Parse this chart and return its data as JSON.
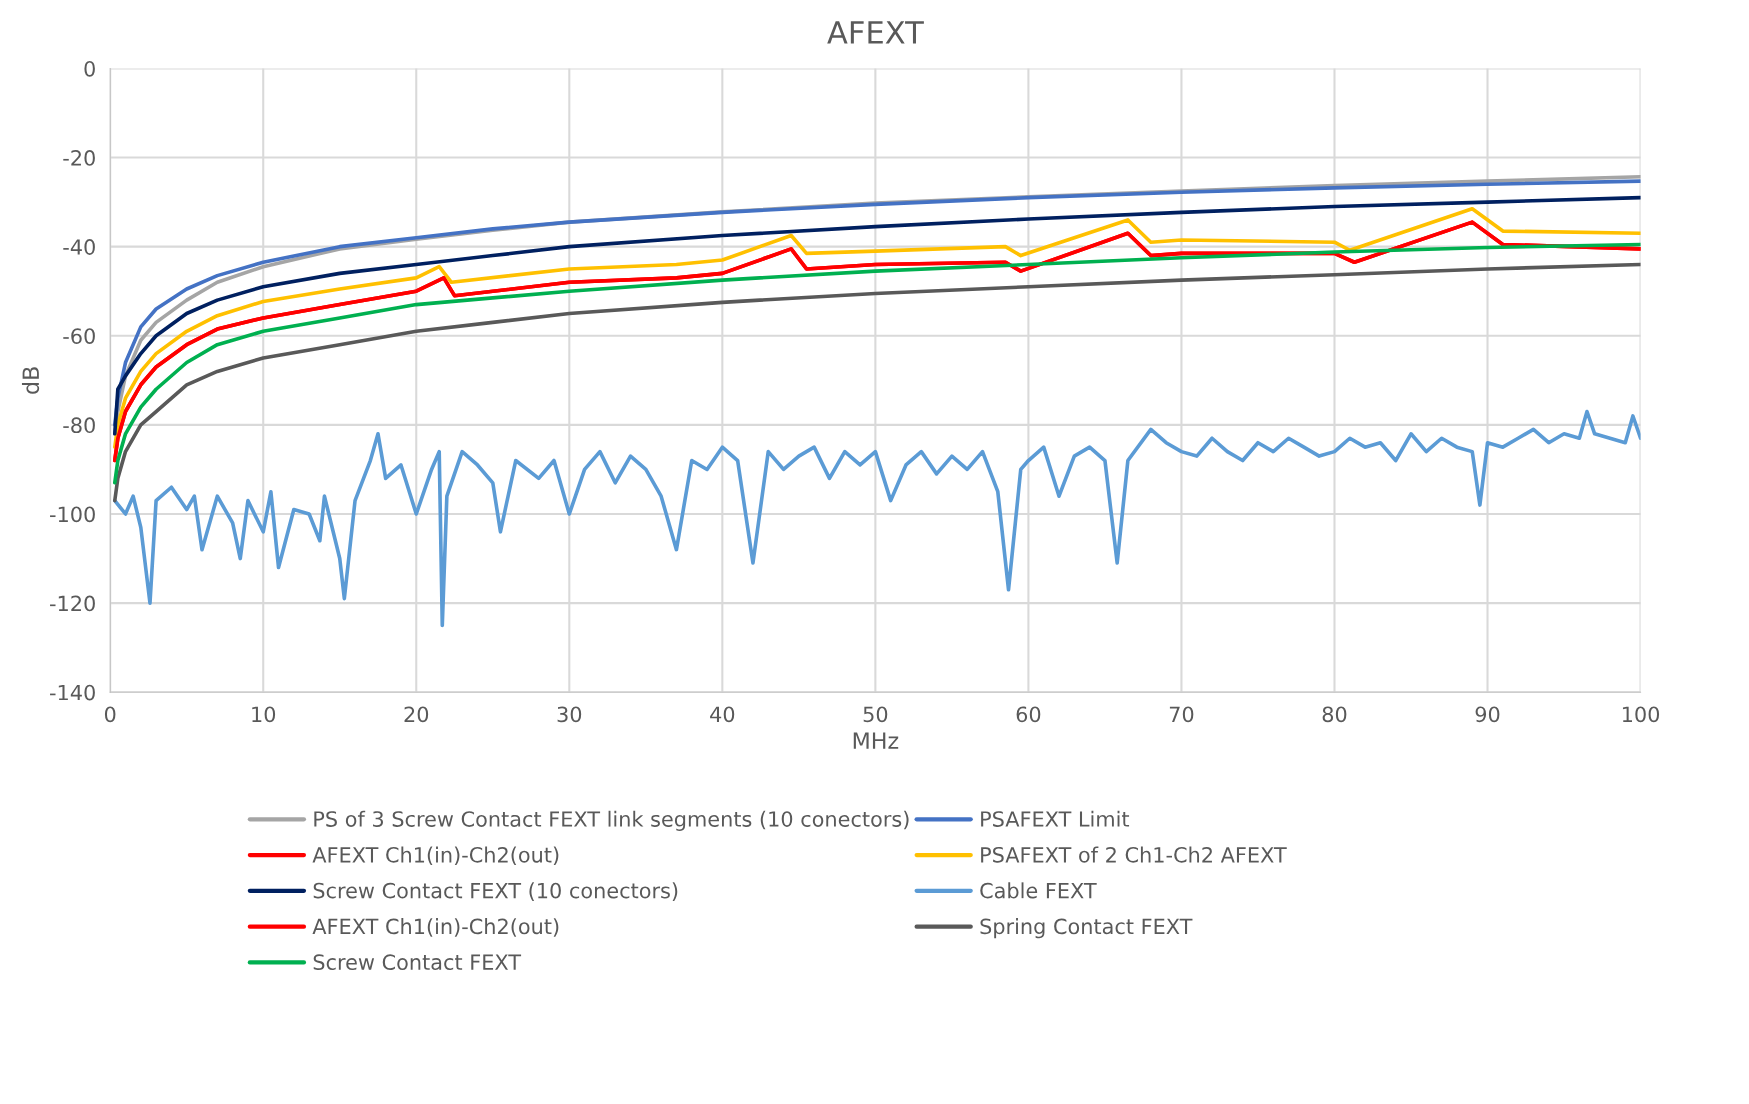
{
  "chart_data": {
    "type": "line",
    "title": "AFEXT",
    "xlabel": "MHz",
    "ylabel": "dB",
    "xlim": [
      0,
      100
    ],
    "xticks": [
      0,
      10,
      20,
      30,
      40,
      50,
      60,
      70,
      80,
      90,
      100
    ],
    "ylim": [
      -140,
      0
    ],
    "yticks": [
      -140,
      -120,
      -100,
      -80,
      -60,
      -40,
      -20,
      0
    ],
    "grid": true,
    "legend": "bottom",
    "marker": "none",
    "line_style": "solid",
    "series": [
      {
        "name": "PS of 3 Screw Contact FEXT link segments (10 conectors)",
        "color": "#a5a5a5",
        "x": [
          0.3,
          0.5,
          1,
          2,
          3,
          5,
          7,
          10,
          15,
          20,
          25,
          30,
          40,
          50,
          60,
          70,
          80,
          90,
          100
        ],
        "values": [
          -82,
          -77,
          -69,
          -61,
          -57,
          -52,
          -48,
          -44.5,
          -40.5,
          -38.3,
          -36.3,
          -34.5,
          -32.2,
          -30.2,
          -28.8,
          -27.5,
          -26.3,
          -25.3,
          -24.3
        ]
      },
      {
        "name": "PSAFEXT Limit",
        "color": "#4472c4",
        "x": [
          0.3,
          0.5,
          1,
          2,
          3,
          5,
          7,
          10,
          15,
          20,
          25,
          30,
          40,
          50,
          60,
          70,
          80,
          90,
          100
        ],
        "values": [
          -80,
          -74,
          -66,
          -58,
          -54,
          -49.5,
          -46.5,
          -43.5,
          -40,
          -38,
          -36,
          -34.5,
          -32.3,
          -30.5,
          -29,
          -27.8,
          -26.8,
          -26,
          -25.3
        ]
      },
      {
        "name": "AFEXT Ch1(in)-Ch2(out)",
        "color": "#ff0000",
        "x": [
          0.3,
          0.5,
          1,
          2,
          3,
          5,
          7,
          10,
          15,
          20,
          21.8,
          22.5,
          30,
          37,
          40,
          44.5,
          45.5,
          50,
          58.5,
          59.5,
          66.5,
          68,
          70,
          80,
          81.3,
          89,
          91,
          100
        ],
        "values": [
          -88,
          -83,
          -77,
          -71,
          -67,
          -62,
          -58.5,
          -56,
          -53,
          -50,
          -47,
          -51,
          -48,
          -47,
          -46,
          -40.5,
          -45,
          -44,
          -43.5,
          -45.5,
          -37,
          -42,
          -41.5,
          -41.5,
          -43.5,
          -34.5,
          -39.5,
          -40.5
        ]
      },
      {
        "name": "PSAFEXT of 2 Ch1-Ch2 AFEXT",
        "color": "#ffc000",
        "x": [
          0.3,
          0.5,
          1,
          2,
          3,
          5,
          7,
          10,
          15,
          20,
          21.5,
          22.3,
          30,
          37,
          40,
          44.5,
          45.5,
          50,
          58.5,
          59.5,
          66.5,
          68,
          70,
          80,
          81,
          89,
          91,
          100
        ],
        "values": [
          -85,
          -80,
          -74,
          -68,
          -64,
          -59,
          -55.5,
          -52.3,
          -49.5,
          -47,
          -44.5,
          -48,
          -45,
          -44,
          -43,
          -37.5,
          -41.5,
          -41,
          -40,
          -42,
          -34,
          -39,
          -38.5,
          -39,
          -40.8,
          -31.5,
          -36.5,
          -37
        ]
      },
      {
        "name": "Screw Contact FEXT (10 conectors)",
        "color": "#002060",
        "x": [
          0.3,
          0.5,
          1,
          2,
          3,
          5,
          7,
          10,
          15,
          20,
          25,
          30,
          40,
          50,
          60,
          70,
          80,
          90,
          100
        ],
        "values": [
          -82,
          -72,
          -69,
          -64,
          -60,
          -55,
          -52,
          -49,
          -46,
          -44,
          -42,
          -40,
          -37.5,
          -35.5,
          -33.8,
          -32.3,
          -31,
          -30,
          -29
        ]
      },
      {
        "name": "Cable FEXT",
        "color": "#5b9bd5",
        "x": [
          0.3,
          1,
          1.5,
          2,
          2.6,
          3,
          4,
          5,
          5.5,
          6,
          7,
          8,
          8.5,
          9,
          10,
          10.5,
          11,
          12,
          13,
          13.7,
          14,
          15,
          15.3,
          16,
          17,
          17.5,
          18,
          19,
          20,
          21,
          21.5,
          21.7,
          22,
          23,
          24,
          25,
          25.5,
          26.5,
          28,
          29,
          30,
          31,
          32,
          33,
          34,
          35,
          36,
          37,
          38,
          39,
          40,
          41,
          42,
          43,
          44,
          45,
          46,
          47,
          48,
          49,
          50,
          51,
          52,
          53,
          54,
          55,
          56,
          57,
          58,
          58.7,
          59.5,
          60,
          61,
          62,
          63,
          64,
          65,
          65.8,
          66.5,
          68,
          69,
          70,
          71,
          72,
          73,
          74,
          75,
          76,
          77,
          78,
          79,
          80,
          81,
          82,
          83,
          84,
          85,
          86,
          87,
          88,
          89,
          89.5,
          90,
          91,
          92,
          93,
          94,
          95,
          96,
          96.5,
          97,
          98,
          99,
          99.5,
          100
        ],
        "values": [
          -97,
          -100,
          -96,
          -103,
          -120,
          -97,
          -94,
          -99,
          -96,
          -108,
          -96,
          -102,
          -110,
          -97,
          -104,
          -95,
          -112,
          -99,
          -100,
          -106,
          -96,
          -110,
          -119,
          -97,
          -88,
          -82,
          -92,
          -89,
          -100,
          -90,
          -86,
          -125,
          -96,
          -86,
          -89,
          -93,
          -104,
          -88,
          -92,
          -88,
          -100,
          -90,
          -86,
          -93,
          -87,
          -90,
          -96,
          -108,
          -88,
          -90,
          -85,
          -88,
          -111,
          -86,
          -90,
          -87,
          -85,
          -92,
          -86,
          -89,
          -86,
          -97,
          -89,
          -86,
          -91,
          -87,
          -90,
          -86,
          -95,
          -117,
          -90,
          -88,
          -85,
          -96,
          -87,
          -85,
          -88,
          -111,
          -88,
          -81,
          -84,
          -86,
          -87,
          -83,
          -86,
          -88,
          -84,
          -86,
          -83,
          -85,
          -87,
          -86,
          -83,
          -85,
          -84,
          -88,
          -82,
          -86,
          -83,
          -85,
          -86,
          -98,
          -84,
          -85,
          -83,
          -81,
          -84,
          -82,
          -83,
          -77,
          -82,
          -83,
          -84,
          -78,
          -83
        ]
      },
      {
        "name": "AFEXT Ch1(in)-Ch2(out)",
        "color": "#ff0000",
        "x": [
          0.3,
          0.5,
          1,
          2,
          3,
          5,
          7,
          10,
          15,
          20,
          21.8,
          22.5,
          30,
          37,
          40,
          44.5,
          45.5,
          50,
          58.5,
          59.5,
          66.5,
          68,
          70,
          80,
          81.3,
          89,
          91,
          100
        ],
        "values": [
          -88,
          -83,
          -77,
          -71,
          -67,
          -62,
          -58.5,
          -56,
          -53,
          -50,
          -47,
          -51,
          -48,
          -47,
          -46,
          -40.5,
          -45,
          -44,
          -43.5,
          -45.5,
          -37,
          -42,
          -41.5,
          -41.5,
          -43.5,
          -34.5,
          -39.5,
          -40.5
        ]
      },
      {
        "name": "Spring Contact FEXT",
        "color": "#595959",
        "x": [
          0.3,
          0.5,
          1,
          2,
          3,
          5,
          7,
          10,
          15,
          20,
          25,
          30,
          40,
          50,
          60,
          70,
          80,
          90,
          100
        ],
        "values": [
          -97,
          -92,
          -86,
          -80,
          -77,
          -71,
          -68,
          -65,
          -62,
          -59,
          -57,
          -55,
          -52.5,
          -50.5,
          -49,
          -47.5,
          -46.3,
          -45,
          -44
        ]
      },
      {
        "name": "Screw Contact FEXT",
        "color": "#00b050",
        "x": [
          0.3,
          0.5,
          1,
          2,
          3,
          5,
          7,
          10,
          15,
          20,
          25,
          30,
          40,
          50,
          60,
          70,
          80,
          90,
          100
        ],
        "values": [
          -93,
          -88,
          -82,
          -76,
          -72,
          -66,
          -62,
          -59,
          -56,
          -53,
          -51.5,
          -50,
          -47.5,
          -45.5,
          -44,
          -42.5,
          -41.2,
          -40.2,
          -39.5
        ]
      }
    ]
  }
}
